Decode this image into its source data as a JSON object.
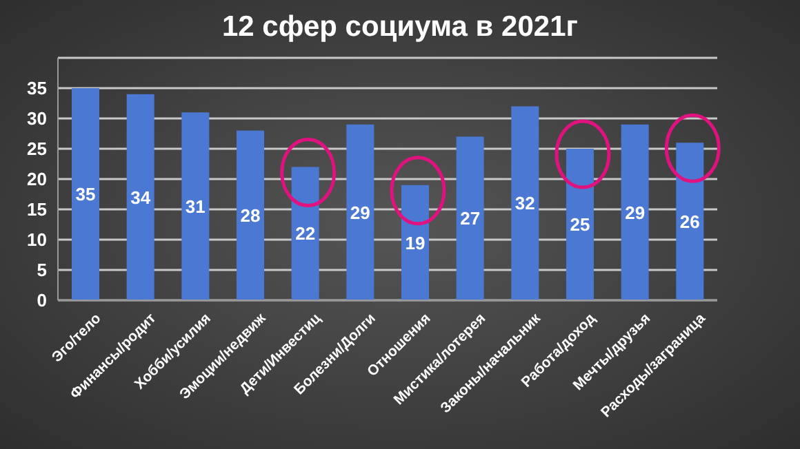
{
  "chart_data": {
    "type": "bar",
    "title": "12 сфер социума в 2021г",
    "categories": [
      "Эго/тело",
      "Финансы/родит",
      "Хобби/усилия",
      "Эмоции/недвиж",
      "Дети/Инвестиц",
      "Болезни/Долги",
      "Отношения",
      "Мистика/лотерея",
      "Законы/начальник",
      "Работа/доход",
      "Мечты/друзья",
      "Расходы/заграница"
    ],
    "values": [
      35,
      34,
      31,
      28,
      22,
      29,
      19,
      27,
      32,
      25,
      29,
      26
    ],
    "color": "#4a78d2",
    "ylim": [
      0,
      40
    ],
    "yticks": [
      0,
      5,
      10,
      15,
      20,
      25,
      30,
      35,
      {
        "value": 40,
        "label": null
      }
    ],
    "grid": "y",
    "data_labels": true
  }
}
